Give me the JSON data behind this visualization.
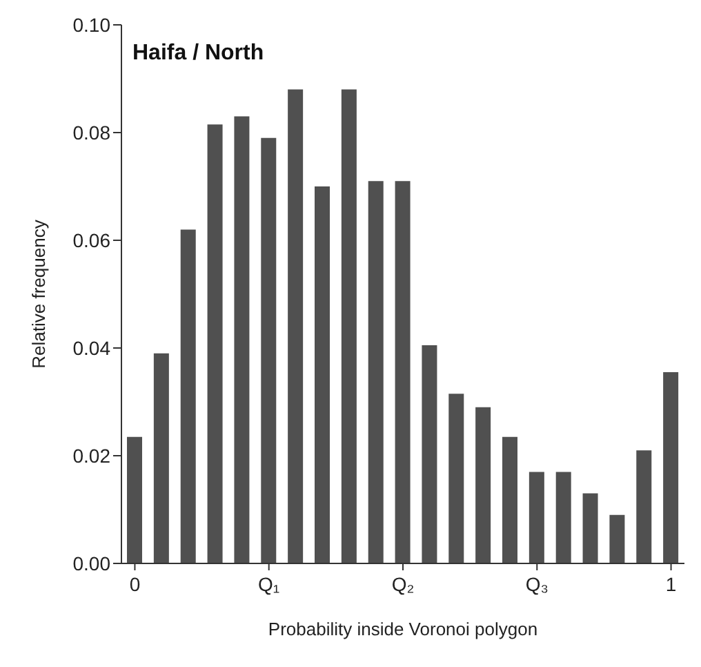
{
  "chart_data": {
    "type": "bar",
    "title": "Haifa / North",
    "xlabel": "Probability inside Voronoi polygon",
    "ylabel": "Relative frequency",
    "categories": [
      "0",
      null,
      null,
      null,
      null,
      "Q₁",
      null,
      null,
      null,
      null,
      "Q₂",
      null,
      null,
      null,
      null,
      "Q₃",
      null,
      null,
      null,
      null,
      "1"
    ],
    "values": [
      0.0235,
      0.039,
      0.062,
      0.0815,
      0.083,
      0.079,
      0.088,
      0.07,
      0.088,
      0.071,
      0.071,
      0.0405,
      0.0315,
      0.029,
      0.0235,
      0.017,
      0.017,
      0.013,
      0.009,
      0.021,
      0.0355
    ],
    "color": "#505050",
    "ylim": [
      0,
      0.1
    ],
    "yticks": [
      {
        "value": 0,
        "label": "0.00"
      },
      {
        "value": 0.02,
        "label": "0.02"
      },
      {
        "value": 0.04,
        "label": "0.04"
      },
      {
        "value": 0.06,
        "label": "0.06"
      },
      {
        "value": 0.08,
        "label": "0.08"
      },
      {
        "value": 0.1,
        "label": "0.10"
      }
    ],
    "grid": false
  }
}
